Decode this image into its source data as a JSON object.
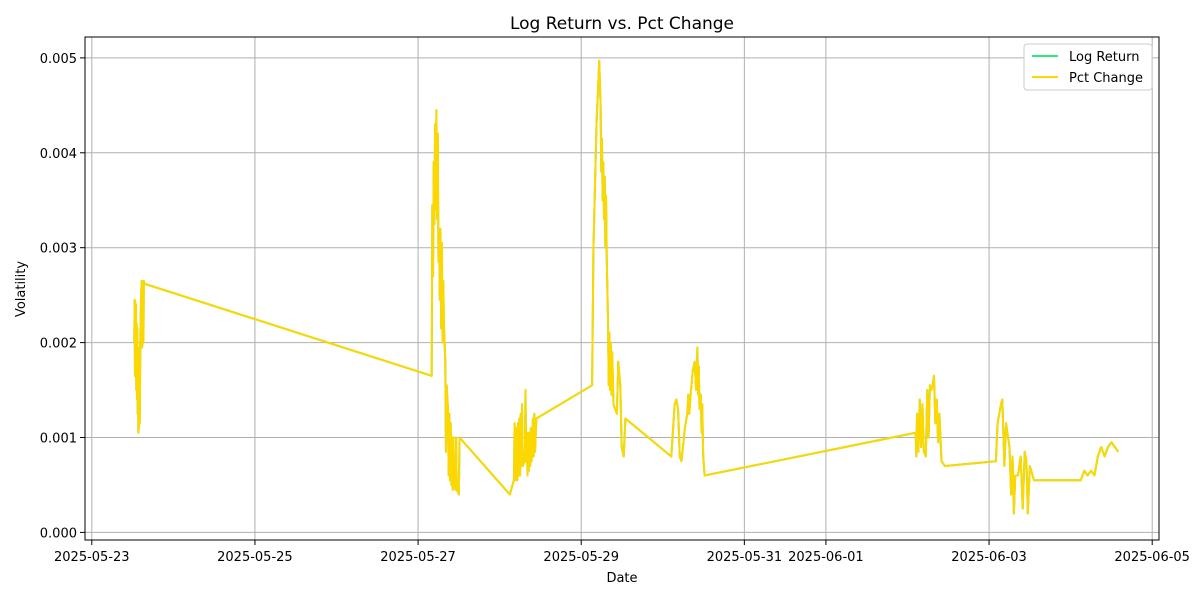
{
  "chart_data": {
    "type": "line",
    "title": "Log Return vs. Pct Change",
    "xlabel": "Date",
    "ylabel": "Volatility",
    "x_ticks": [
      "2025-05-23",
      "2025-05-25",
      "2025-05-27",
      "2025-05-29",
      "2025-05-31",
      "2025-06-01",
      "2025-06-03",
      "2025-06-05"
    ],
    "y_ticks": [
      "0.000",
      "0.001",
      "0.002",
      "0.003",
      "0.004",
      "0.005"
    ],
    "xlim": [
      "2025-05-22T22:00",
      "2025-06-05T02:00"
    ],
    "ylim": [
      -8e-05,
      0.00522
    ],
    "grid": true,
    "legend_position": "top-right",
    "series": [
      {
        "name": "Log Return",
        "color": "#2ee87a",
        "points": [
          [
            "2025-05-23T12:30",
            0.002
          ],
          [
            "2025-05-23T12:36",
            0.00245
          ],
          [
            "2025-05-23T12:42",
            0.00165
          ],
          [
            "2025-05-23T12:48",
            0.00243
          ],
          [
            "2025-05-23T12:54",
            0.0017
          ],
          [
            "2025-05-23T13:00",
            0.0024
          ],
          [
            "2025-05-23T13:06",
            0.0015
          ],
          [
            "2025-05-23T13:12",
            0.0022
          ],
          [
            "2025-05-23T13:18",
            0.0014
          ],
          [
            "2025-05-23T13:24",
            0.00215
          ],
          [
            "2025-05-23T13:30",
            0.00125
          ],
          [
            "2025-05-23T13:36",
            0.00195
          ],
          [
            "2025-05-23T13:42",
            0.00105
          ],
          [
            "2025-05-23T13:48",
            0.00185
          ],
          [
            "2025-05-23T13:54",
            0.0011
          ],
          [
            "2025-05-23T14:00",
            0.0019
          ],
          [
            "2025-05-23T14:06",
            0.00115
          ],
          [
            "2025-05-23T14:18",
            0.0021
          ],
          [
            "2025-05-23T14:30",
            0.0025
          ],
          [
            "2025-05-23T14:42",
            0.00265
          ],
          [
            "2025-05-23T14:48",
            0.00195
          ],
          [
            "2025-05-23T15:00",
            0.00205
          ],
          [
            "2025-05-23T15:12",
            0.002
          ],
          [
            "2025-05-23T15:18",
            0.00265
          ],
          [
            "2025-05-23T15:30",
            0.00262
          ],
          [
            "2025-05-27T04:00",
            0.00165
          ],
          [
            "2025-05-27T04:12",
            0.00345
          ],
          [
            "2025-05-27T04:24",
            0.0027
          ],
          [
            "2025-05-27T04:36",
            0.0039
          ],
          [
            "2025-05-27T04:48",
            0.00325
          ],
          [
            "2025-05-27T05:00",
            0.0043
          ],
          [
            "2025-05-27T05:12",
            0.0034
          ],
          [
            "2025-05-27T05:24",
            0.00445
          ],
          [
            "2025-05-27T05:36",
            0.0033
          ],
          [
            "2025-05-27T05:48",
            0.0042
          ],
          [
            "2025-05-27T06:00",
            0.00285
          ],
          [
            "2025-05-27T06:12",
            0.0031
          ],
          [
            "2025-05-27T06:24",
            0.00245
          ],
          [
            "2025-05-27T06:36",
            0.0032
          ],
          [
            "2025-05-27T06:48",
            0.00215
          ],
          [
            "2025-05-27T07:00",
            0.00305
          ],
          [
            "2025-05-27T07:12",
            0.002
          ],
          [
            "2025-05-27T07:24",
            0.00265
          ],
          [
            "2025-05-27T07:36",
            0.0022
          ],
          [
            "2025-05-27T08:00",
            0.0018
          ],
          [
            "2025-05-27T08:12",
            0.00085
          ],
          [
            "2025-05-27T08:24",
            0.00155
          ],
          [
            "2025-05-27T08:48",
            0.0013
          ],
          [
            "2025-05-27T09:00",
            0.0006
          ],
          [
            "2025-05-27T09:12",
            0.00125
          ],
          [
            "2025-05-27T09:24",
            0.00055
          ],
          [
            "2025-05-27T09:36",
            0.00115
          ],
          [
            "2025-05-27T09:48",
            0.0005
          ],
          [
            "2025-05-27T10:00",
            0.001
          ],
          [
            "2025-05-27T10:12",
            0.00045
          ],
          [
            "2025-05-27T10:24",
            0.001
          ],
          [
            "2025-05-27T10:36",
            0.0005
          ],
          [
            "2025-05-27T11:00",
            0.00045
          ],
          [
            "2025-05-27T11:12",
            0.001
          ],
          [
            "2025-05-27T11:24",
            0.00045
          ],
          [
            "2025-05-27T12:00",
            0.0004
          ],
          [
            "2025-05-27T12:12",
            0.001
          ],
          [
            "2025-05-28T03:00",
            0.0004
          ],
          [
            "2025-05-28T04:12",
            0.00055
          ],
          [
            "2025-05-28T04:24",
            0.00115
          ],
          [
            "2025-05-28T04:36",
            0.00055
          ],
          [
            "2025-05-28T05:00",
            0.0011
          ],
          [
            "2025-05-28T05:12",
            0.00055
          ],
          [
            "2025-05-28T05:24",
            0.00115
          ],
          [
            "2025-05-28T05:36",
            0.0006
          ],
          [
            "2025-05-28T05:48",
            0.0012
          ],
          [
            "2025-05-28T06:00",
            0.0006
          ],
          [
            "2025-05-28T06:12",
            0.00125
          ],
          [
            "2025-05-28T06:24",
            0.0007
          ],
          [
            "2025-05-28T06:36",
            0.00135
          ],
          [
            "2025-05-28T06:48",
            0.0007
          ],
          [
            "2025-05-28T07:24",
            0.00075
          ],
          [
            "2025-05-28T07:36",
            0.0015
          ],
          [
            "2025-05-28T07:48",
            0.00075
          ],
          [
            "2025-05-28T08:00",
            0.00105
          ],
          [
            "2025-05-28T08:12",
            0.0006
          ],
          [
            "2025-05-28T08:24",
            0.00105
          ],
          [
            "2025-05-28T08:36",
            0.00065
          ],
          [
            "2025-05-28T08:48",
            0.00105
          ],
          [
            "2025-05-28T09:00",
            0.0007
          ],
          [
            "2025-05-28T09:12",
            0.0011
          ],
          [
            "2025-05-28T09:24",
            0.00075
          ],
          [
            "2025-05-28T09:48",
            0.0012
          ],
          [
            "2025-05-28T10:00",
            0.0008
          ],
          [
            "2025-05-28T10:12",
            0.00125
          ],
          [
            "2025-05-28T10:24",
            0.00085
          ],
          [
            "2025-05-28T10:48",
            0.0012
          ],
          [
            "2025-05-29T03:12",
            0.00155
          ],
          [
            "2025-05-29T03:36",
            0.003
          ],
          [
            "2025-05-29T04:30",
            0.0043
          ],
          [
            "2025-05-29T05:18",
            0.00497
          ],
          [
            "2025-05-29T05:42",
            0.0045
          ],
          [
            "2025-05-29T05:54",
            0.0038
          ],
          [
            "2025-05-29T06:06",
            0.00415
          ],
          [
            "2025-05-29T06:18",
            0.0035
          ],
          [
            "2025-05-29T06:30",
            0.0039
          ],
          [
            "2025-05-29T06:42",
            0.0033
          ],
          [
            "2025-05-29T06:54",
            0.00375
          ],
          [
            "2025-05-29T07:06",
            0.003
          ],
          [
            "2025-05-29T07:18",
            0.00355
          ],
          [
            "2025-05-29T07:30",
            0.0029
          ],
          [
            "2025-05-29T07:54",
            0.0022
          ],
          [
            "2025-05-29T08:06",
            0.00155
          ],
          [
            "2025-05-29T08:18",
            0.0021
          ],
          [
            "2025-05-29T08:30",
            0.0015
          ],
          [
            "2025-05-29T08:42",
            0.002
          ],
          [
            "2025-05-29T08:54",
            0.00145
          ],
          [
            "2025-05-29T09:06",
            0.0019
          ],
          [
            "2025-05-29T09:30",
            0.00135
          ],
          [
            "2025-05-29T10:30",
            0.00125
          ],
          [
            "2025-05-29T10:54",
            0.0018
          ],
          [
            "2025-05-29T11:30",
            0.00155
          ],
          [
            "2025-05-29T11:54",
            0.0009
          ],
          [
            "2025-05-29T12:30",
            0.0008
          ],
          [
            "2025-05-29T13:00",
            0.0012
          ],
          [
            "2025-05-30T02:30",
            0.0008
          ],
          [
            "2025-05-30T03:30",
            0.00135
          ],
          [
            "2025-05-30T04:00",
            0.0014
          ],
          [
            "2025-05-30T04:30",
            0.0013
          ],
          [
            "2025-05-30T05:00",
            0.0008
          ],
          [
            "2025-05-30T05:30",
            0.00075
          ],
          [
            "2025-05-30T06:30",
            0.0011
          ],
          [
            "2025-05-30T07:12",
            0.00125
          ],
          [
            "2025-05-30T07:30",
            0.00145
          ],
          [
            "2025-05-30T07:48",
            0.00125
          ],
          [
            "2025-05-30T08:12",
            0.00145
          ],
          [
            "2025-05-30T08:48",
            0.0017
          ],
          [
            "2025-05-30T09:24",
            0.0018
          ],
          [
            "2025-05-30T09:48",
            0.0015
          ],
          [
            "2025-05-30T10:12",
            0.00195
          ],
          [
            "2025-05-30T10:24",
            0.00145
          ],
          [
            "2025-05-30T10:36",
            0.00175
          ],
          [
            "2025-05-30T10:48",
            0.0013
          ],
          [
            "2025-05-30T11:12",
            0.00145
          ],
          [
            "2025-05-30T11:24",
            0.00105
          ],
          [
            "2025-05-30T11:36",
            0.00135
          ],
          [
            "2025-05-30T11:54",
            0.0008
          ],
          [
            "2025-05-30T12:18",
            0.0006
          ],
          [
            "2025-06-02T02:24",
            0.00105
          ],
          [
            "2025-06-02T02:36",
            0.0008
          ],
          [
            "2025-06-02T02:48",
            0.00125
          ],
          [
            "2025-06-02T03:12",
            0.00085
          ],
          [
            "2025-06-02T03:36",
            0.0014
          ],
          [
            "2025-06-02T04:00",
            0.0009
          ],
          [
            "2025-06-02T04:24",
            0.00135
          ],
          [
            "2025-06-02T04:48",
            0.00085
          ],
          [
            "2025-06-02T05:24",
            0.0008
          ],
          [
            "2025-06-02T05:48",
            0.0015
          ],
          [
            "2025-06-02T06:12",
            0.001
          ],
          [
            "2025-06-02T06:36",
            0.00155
          ],
          [
            "2025-06-02T07:00",
            0.0015
          ],
          [
            "2025-06-02T07:24",
            0.00155
          ],
          [
            "2025-06-02T07:48",
            0.00165
          ],
          [
            "2025-06-02T08:12",
            0.00115
          ],
          [
            "2025-06-02T08:36",
            0.0014
          ],
          [
            "2025-06-02T09:00",
            0.00095
          ],
          [
            "2025-06-02T09:24",
            0.00125
          ],
          [
            "2025-06-02T10:00",
            0.00075
          ],
          [
            "2025-06-02T11:00",
            0.0007
          ],
          [
            "2025-06-03T02:00",
            0.00075
          ],
          [
            "2025-06-03T02:30",
            0.00115
          ],
          [
            "2025-06-03T03:30",
            0.00135
          ],
          [
            "2025-06-03T03:54",
            0.0014
          ],
          [
            "2025-06-03T04:30",
            0.0007
          ],
          [
            "2025-06-03T05:00",
            0.00115
          ],
          [
            "2025-06-03T06:00",
            0.0009
          ],
          [
            "2025-06-03T06:30",
            0.0004
          ],
          [
            "2025-06-03T06:54",
            0.0008
          ],
          [
            "2025-06-03T07:18",
            0.0002
          ],
          [
            "2025-06-03T07:42",
            0.0006
          ],
          [
            "2025-06-03T08:30",
            0.0006
          ],
          [
            "2025-06-03T09:18",
            0.0008
          ],
          [
            "2025-06-03T09:54",
            0.00025
          ],
          [
            "2025-06-03T10:30",
            0.00085
          ],
          [
            "2025-06-03T11:00",
            0.00075
          ],
          [
            "2025-06-03T11:24",
            0.0002
          ],
          [
            "2025-06-03T12:00",
            0.0007
          ],
          [
            "2025-06-03T13:12",
            0.00055
          ],
          [
            "2025-06-04T03:00",
            0.00055
          ],
          [
            "2025-06-04T04:00",
            0.00065
          ],
          [
            "2025-06-04T05:00",
            0.0006
          ],
          [
            "2025-06-04T06:00",
            0.00065
          ],
          [
            "2025-06-04T07:00",
            0.0006
          ],
          [
            "2025-06-04T08:00",
            0.0008
          ],
          [
            "2025-06-04T09:00",
            0.0009
          ],
          [
            "2025-06-04T10:00",
            0.0008
          ],
          [
            "2025-06-04T11:00",
            0.0009
          ],
          [
            "2025-06-04T12:00",
            0.00095
          ],
          [
            "2025-06-04T13:00",
            0.0009
          ],
          [
            "2025-06-04T14:00",
            0.00085
          ]
        ]
      },
      {
        "name": "Pct Change",
        "color": "#ffd700"
      }
    ]
  }
}
